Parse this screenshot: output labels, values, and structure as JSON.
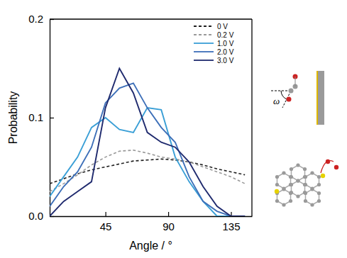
{
  "chart_data": {
    "type": "line",
    "x_label": "Angle / °",
    "y_label": "Probability",
    "annotation": "ω",
    "x": [
      5,
      15,
      25,
      35,
      45,
      55,
      65,
      75,
      85,
      95,
      105,
      115,
      125,
      135,
      145
    ],
    "xlim": [
      5,
      150
    ],
    "xticks": [
      45,
      90,
      135
    ],
    "ylim": [
      0,
      0.2
    ],
    "yticks": [
      {
        "value": 0,
        "label": "0.0"
      },
      0.1,
      0.2
    ],
    "legend": "upper right",
    "series": [
      {
        "name": "0 V",
        "color": "#222222",
        "line_style": "dashed",
        "values": [
          0.033,
          0.038,
          0.043,
          0.047,
          0.05,
          0.053,
          0.056,
          0.057,
          0.058,
          0.057,
          0.055,
          0.052,
          0.048,
          0.045,
          0.042
        ]
      },
      {
        "name": "0.2 V",
        "color": "#9a9a9a",
        "line_style": "dashed",
        "values": [
          0.025,
          0.033,
          0.042,
          0.052,
          0.06,
          0.066,
          0.067,
          0.064,
          0.06,
          0.058,
          0.055,
          0.05,
          0.045,
          0.04,
          0.033
        ]
      },
      {
        "name": "1.0 V",
        "color": "#3a9fd6",
        "line_style": "solid",
        "values": [
          0.02,
          0.04,
          0.06,
          0.09,
          0.1,
          0.088,
          0.085,
          0.11,
          0.108,
          0.06,
          0.035,
          0.015,
          0.0,
          0.0,
          0.0
        ]
      },
      {
        "name": "2.0 V",
        "color": "#3d6fb8",
        "line_style": "solid",
        "values": [
          0.01,
          0.03,
          0.045,
          0.07,
          0.115,
          0.13,
          0.135,
          0.11,
          0.09,
          0.075,
          0.04,
          0.015,
          0.005,
          0.0,
          0.0
        ]
      },
      {
        "name": "3.0 V",
        "color": "#1f2a6e",
        "line_style": "solid",
        "values": [
          0.0,
          0.015,
          0.025,
          0.035,
          0.11,
          0.15,
          0.125,
          0.085,
          0.075,
          0.07,
          0.055,
          0.03,
          0.01,
          0.0,
          0.0
        ]
      }
    ]
  }
}
